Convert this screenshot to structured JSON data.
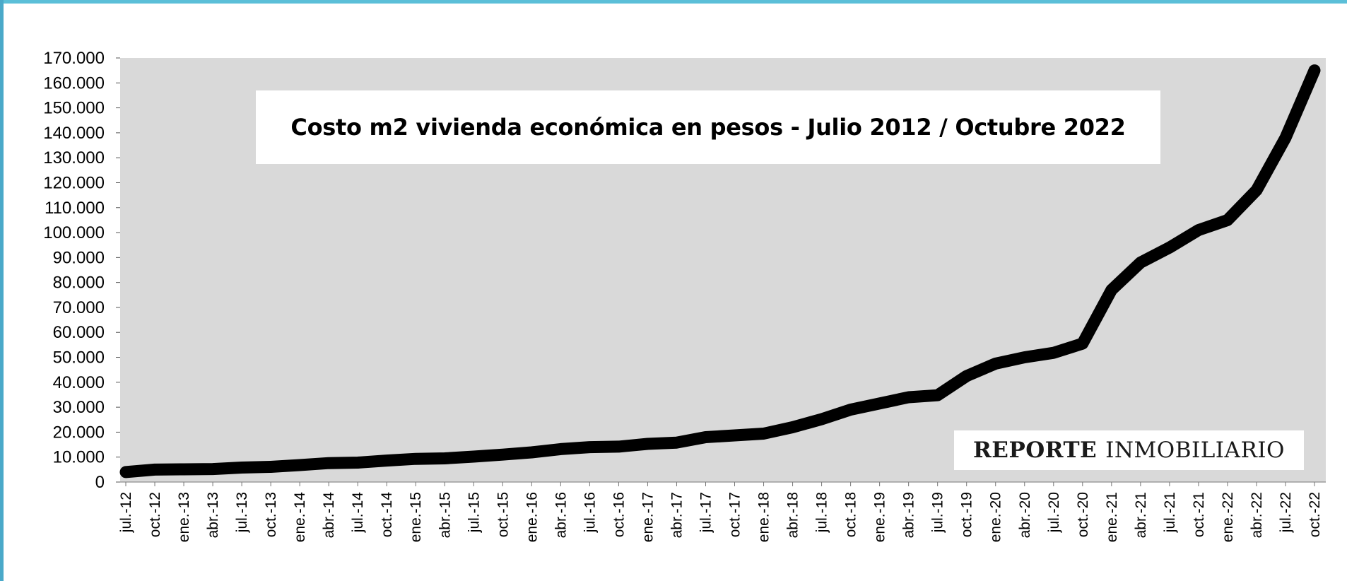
{
  "chart_data": {
    "type": "line",
    "title": "Costo m2 vivienda económica en pesos - Julio 2012 / Octubre 2022",
    "xlabel": "",
    "ylabel": "",
    "ylim": [
      0,
      170000
    ],
    "y_ticks": [
      "0",
      "10.000",
      "20.000",
      "30.000",
      "40.000",
      "50.000",
      "60.000",
      "70.000",
      "80.000",
      "90.000",
      "100.000",
      "110.000",
      "120.000",
      "130.000",
      "140.000",
      "150.000",
      "160.000",
      "170.000"
    ],
    "grid": false,
    "background_color": "#d9d9d9",
    "line_color": "#000000",
    "categories": [
      "jul.-12",
      "oct.-12",
      "ene.-13",
      "abr.-13",
      "jul.-13",
      "oct.-13",
      "ene.-14",
      "abr.-14",
      "jul.-14",
      "oct.-14",
      "ene.-15",
      "abr.-15",
      "jul.-15",
      "oct.-15",
      "ene.-16",
      "abr.-16",
      "jul.-16",
      "oct.-16",
      "ene.-17",
      "abr.-17",
      "jul.-17",
      "oct.-17",
      "ene.-18",
      "abr.-18",
      "jul.-18",
      "oct.-18",
      "ene.-19",
      "abr.-19",
      "jul.-19",
      "oct.-19",
      "ene.-20",
      "abr.-20",
      "jul.-20",
      "oct.-20",
      "ene.-21",
      "abr.-21",
      "jul.-21",
      "oct.-21",
      "ene.-22",
      "abr.-22",
      "jul.-22",
      "oct.-22"
    ],
    "series": [
      {
        "values": [
          4000,
          5000,
          5100,
          5200,
          5800,
          6100,
          6800,
          7600,
          7800,
          8600,
          9300,
          9500,
          10200,
          11000,
          11900,
          13200,
          14000,
          14200,
          15300,
          15800,
          18000,
          18700,
          19400,
          22000,
          25200,
          29000,
          31500,
          34000,
          34800,
          42500,
          47500,
          50000,
          51800,
          55500,
          77000,
          88000,
          94000,
          101000,
          105000,
          117000,
          138000,
          165000
        ]
      }
    ],
    "watermark": {
      "bold": "REPORTE",
      "regular": "INMOBILIARIO"
    }
  }
}
